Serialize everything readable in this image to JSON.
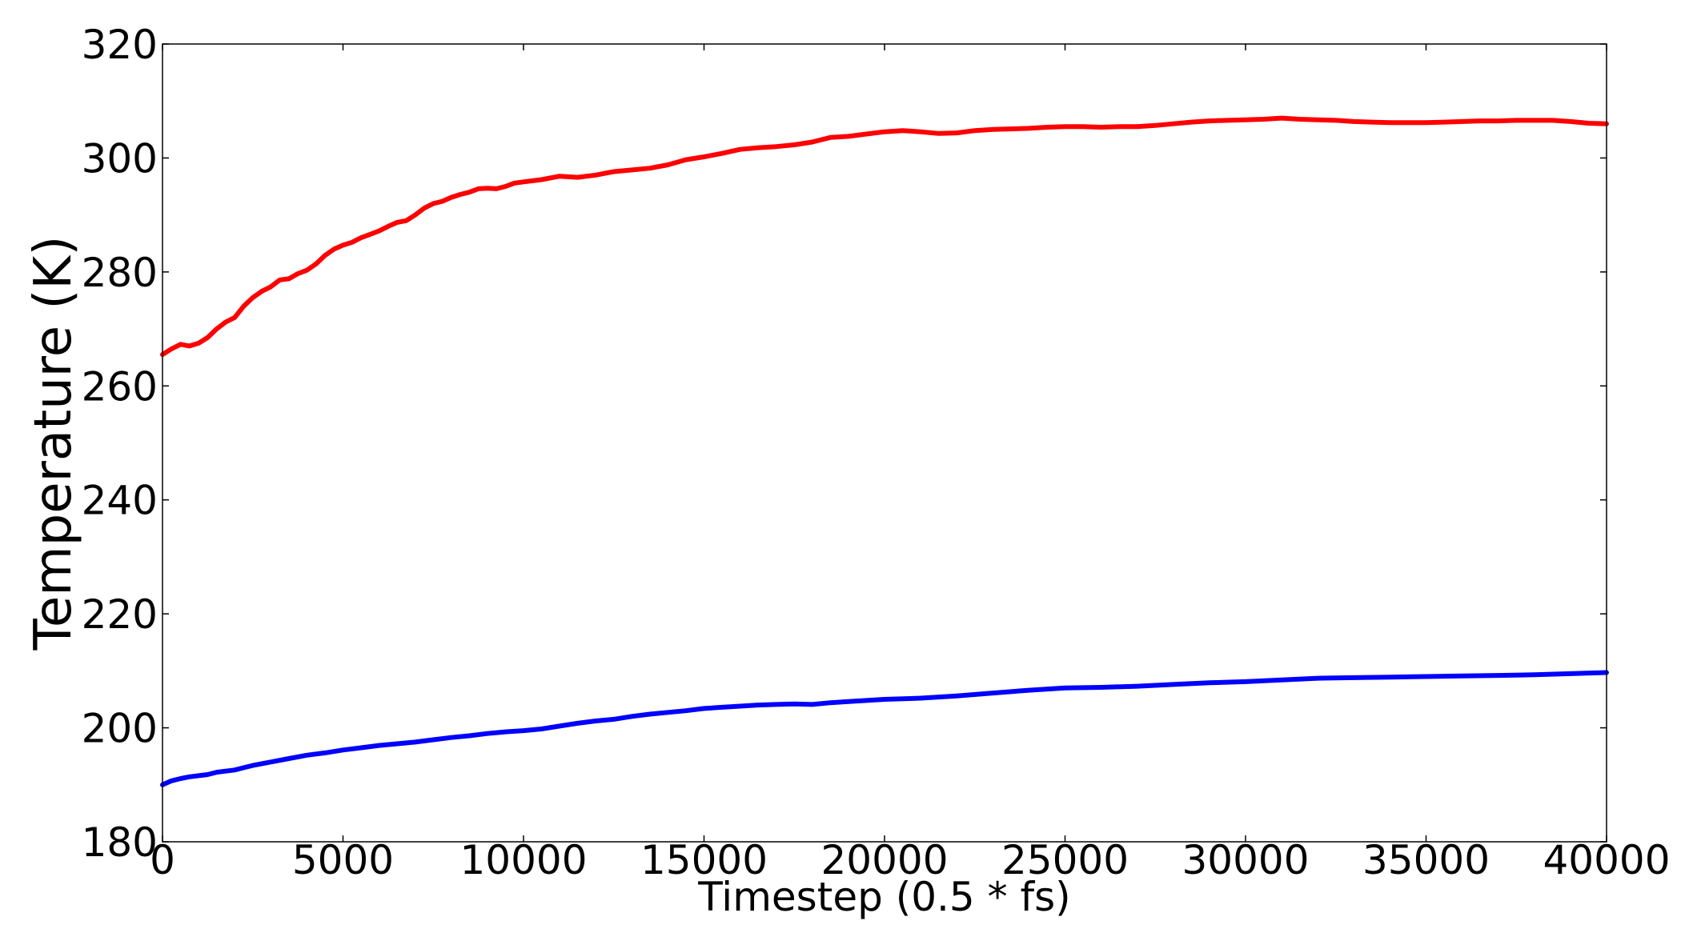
{
  "chart_data": {
    "type": "line",
    "title": "",
    "xlabel": "Timestep (0.5 * fs)",
    "ylabel": "Temperature (K)",
    "xlim": [
      0,
      40000
    ],
    "ylim": [
      180,
      320
    ],
    "xticks": [
      0,
      5000,
      10000,
      15000,
      20000,
      25000,
      30000,
      35000,
      40000
    ],
    "xtick_labels": [
      "0",
      "5000",
      "10000",
      "15000",
      "20000",
      "25000",
      "30000",
      "35000",
      "40000"
    ],
    "yticks": [
      180,
      200,
      220,
      240,
      260,
      280,
      300,
      320
    ],
    "ytick_labels": [
      "180",
      "200",
      "220",
      "240",
      "260",
      "280",
      "300",
      "320"
    ],
    "grid": false,
    "legend": "none",
    "series": [
      {
        "color": "#ff0000",
        "points": [
          [
            0,
            265.5
          ],
          [
            250,
            266.5
          ],
          [
            500,
            267.3
          ],
          [
            750,
            267.0
          ],
          [
            1000,
            267.5
          ],
          [
            1250,
            268.5
          ],
          [
            1500,
            270.0
          ],
          [
            1750,
            271.2
          ],
          [
            2000,
            272.0
          ],
          [
            2250,
            274.0
          ],
          [
            2500,
            275.5
          ],
          [
            2750,
            276.6
          ],
          [
            3000,
            277.4
          ],
          [
            3250,
            278.6
          ],
          [
            3500,
            278.8
          ],
          [
            3750,
            279.7
          ],
          [
            4000,
            280.3
          ],
          [
            4250,
            281.4
          ],
          [
            4500,
            282.9
          ],
          [
            4750,
            284.0
          ],
          [
            5000,
            284.7
          ],
          [
            5250,
            285.2
          ],
          [
            5500,
            286.0
          ],
          [
            5750,
            286.6
          ],
          [
            6000,
            287.2
          ],
          [
            6250,
            288.0
          ],
          [
            6500,
            288.7
          ],
          [
            6750,
            289.0
          ],
          [
            7000,
            290.0
          ],
          [
            7250,
            291.2
          ],
          [
            7500,
            292.0
          ],
          [
            7750,
            292.4
          ],
          [
            8000,
            293.1
          ],
          [
            8250,
            293.6
          ],
          [
            8500,
            294.0
          ],
          [
            8750,
            294.6
          ],
          [
            9000,
            294.7
          ],
          [
            9250,
            294.6
          ],
          [
            9500,
            295.0
          ],
          [
            9750,
            295.6
          ],
          [
            10000,
            295.8
          ],
          [
            10500,
            296.2
          ],
          [
            11000,
            296.8
          ],
          [
            11500,
            296.6
          ],
          [
            12000,
            297.0
          ],
          [
            12500,
            297.6
          ],
          [
            13000,
            297.9
          ],
          [
            13500,
            298.2
          ],
          [
            14000,
            298.8
          ],
          [
            14500,
            299.7
          ],
          [
            15000,
            300.2
          ],
          [
            15500,
            300.8
          ],
          [
            16000,
            301.5
          ],
          [
            16500,
            301.8
          ],
          [
            17000,
            302.0
          ],
          [
            17500,
            302.3
          ],
          [
            18000,
            302.8
          ],
          [
            18500,
            303.6
          ],
          [
            19000,
            303.8
          ],
          [
            19500,
            304.2
          ],
          [
            20000,
            304.6
          ],
          [
            20500,
            304.8
          ],
          [
            21000,
            304.6
          ],
          [
            21500,
            304.3
          ],
          [
            22000,
            304.4
          ],
          [
            22500,
            304.8
          ],
          [
            23000,
            305.0
          ],
          [
            23500,
            305.1
          ],
          [
            24000,
            305.2
          ],
          [
            24500,
            305.4
          ],
          [
            25000,
            305.5
          ],
          [
            25500,
            305.5
          ],
          [
            26000,
            305.4
          ],
          [
            26500,
            305.5
          ],
          [
            27000,
            305.5
          ],
          [
            27500,
            305.7
          ],
          [
            28000,
            306.0
          ],
          [
            28500,
            306.3
          ],
          [
            29000,
            306.5
          ],
          [
            29500,
            306.6
          ],
          [
            30000,
            306.7
          ],
          [
            30500,
            306.8
          ],
          [
            31000,
            307.0
          ],
          [
            31500,
            306.8
          ],
          [
            32000,
            306.7
          ],
          [
            32500,
            306.6
          ],
          [
            33000,
            306.4
          ],
          [
            33500,
            306.3
          ],
          [
            34000,
            306.2
          ],
          [
            34500,
            306.2
          ],
          [
            35000,
            306.2
          ],
          [
            35500,
            306.3
          ],
          [
            36000,
            306.4
          ],
          [
            36500,
            306.5
          ],
          [
            37000,
            306.5
          ],
          [
            37500,
            306.6
          ],
          [
            38000,
            306.6
          ],
          [
            38500,
            306.6
          ],
          [
            39000,
            306.4
          ],
          [
            39500,
            306.1
          ],
          [
            40000,
            306.0
          ]
        ]
      },
      {
        "color": "#0000ff",
        "points": [
          [
            0,
            190.0
          ],
          [
            250,
            190.7
          ],
          [
            500,
            191.1
          ],
          [
            750,
            191.4
          ],
          [
            1000,
            191.6
          ],
          [
            1250,
            191.8
          ],
          [
            1500,
            192.2
          ],
          [
            1750,
            192.4
          ],
          [
            2000,
            192.6
          ],
          [
            2250,
            193.0
          ],
          [
            2500,
            193.4
          ],
          [
            2750,
            193.7
          ],
          [
            3000,
            194.0
          ],
          [
            3500,
            194.6
          ],
          [
            4000,
            195.2
          ],
          [
            4500,
            195.6
          ],
          [
            5000,
            196.1
          ],
          [
            5500,
            196.5
          ],
          [
            6000,
            196.9
          ],
          [
            6500,
            197.2
          ],
          [
            7000,
            197.5
          ],
          [
            7500,
            197.9
          ],
          [
            8000,
            198.3
          ],
          [
            8500,
            198.6
          ],
          [
            9000,
            199.0
          ],
          [
            9500,
            199.3
          ],
          [
            10000,
            199.5
          ],
          [
            10500,
            199.8
          ],
          [
            11000,
            200.3
          ],
          [
            11500,
            200.8
          ],
          [
            12000,
            201.2
          ],
          [
            12500,
            201.5
          ],
          [
            13000,
            202.0
          ],
          [
            13500,
            202.4
          ],
          [
            14000,
            202.7
          ],
          [
            14500,
            203.0
          ],
          [
            15000,
            203.4
          ],
          [
            15500,
            203.6
          ],
          [
            16000,
            203.8
          ],
          [
            16500,
            204.0
          ],
          [
            17000,
            204.1
          ],
          [
            17500,
            204.2
          ],
          [
            18000,
            204.1
          ],
          [
            18500,
            204.4
          ],
          [
            19000,
            204.6
          ],
          [
            19500,
            204.8
          ],
          [
            20000,
            205.0
          ],
          [
            21000,
            205.2
          ],
          [
            22000,
            205.6
          ],
          [
            23000,
            206.1
          ],
          [
            24000,
            206.6
          ],
          [
            25000,
            207.0
          ],
          [
            26000,
            207.1
          ],
          [
            27000,
            207.3
          ],
          [
            28000,
            207.6
          ],
          [
            29000,
            207.9
          ],
          [
            30000,
            208.1
          ],
          [
            31000,
            208.4
          ],
          [
            32000,
            208.7
          ],
          [
            33000,
            208.8
          ],
          [
            34000,
            208.9
          ],
          [
            35000,
            209.0
          ],
          [
            36000,
            209.1
          ],
          [
            37000,
            209.2
          ],
          [
            38000,
            209.3
          ],
          [
            39000,
            209.5
          ],
          [
            40000,
            209.7
          ]
        ]
      }
    ]
  }
}
